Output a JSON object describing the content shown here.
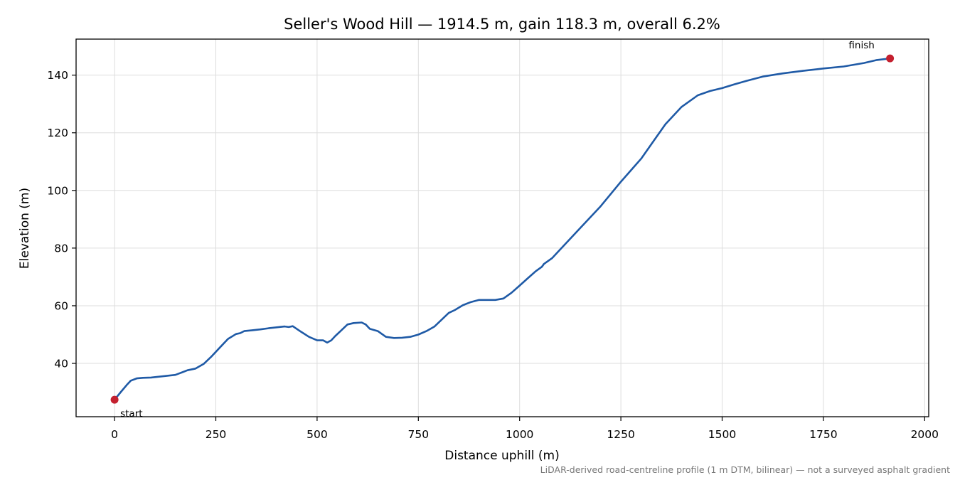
{
  "chart_data": {
    "type": "line",
    "title": "Seller's Wood Hill — 1914.5 m, gain 118.3 m, overall 6.2%",
    "xlabel": "Distance uphill (m)",
    "ylabel": "Elevation (m)",
    "xlim": [
      -95,
      2010
    ],
    "ylim": [
      21.5,
      152.5
    ],
    "xticks": [
      0,
      250,
      500,
      750,
      1000,
      1250,
      1500,
      1750,
      2000
    ],
    "yticks": [
      40,
      60,
      80,
      100,
      120,
      140
    ],
    "grid": true,
    "line_color": "#1f5aa6",
    "marker_color": "#c4202f",
    "series": [
      {
        "x": [
          0,
          15,
          30,
          40,
          55,
          70,
          90,
          110,
          130,
          150,
          165,
          180,
          200,
          220,
          240,
          260,
          280,
          300,
          310,
          320,
          340,
          360,
          380,
          400,
          420,
          430,
          440,
          460,
          480,
          500,
          515,
          525,
          535,
          545,
          560,
          575,
          590,
          610,
          620,
          630,
          650,
          670,
          690,
          710,
          730,
          750,
          770,
          790,
          810,
          825,
          840,
          860,
          880,
          900,
          920,
          940,
          960,
          980,
          1000,
          1020,
          1040,
          1055,
          1060,
          1080,
          1100,
          1150,
          1200,
          1250,
          1300,
          1330,
          1360,
          1400,
          1440,
          1470,
          1500,
          1530,
          1560,
          1600,
          1650,
          1700,
          1750,
          1800,
          1850,
          1880,
          1914.5
        ],
        "y": [
          27.4,
          30.0,
          32.5,
          34.0,
          34.8,
          35.0,
          35.1,
          35.4,
          35.7,
          36.0,
          36.8,
          37.6,
          38.2,
          39.8,
          42.5,
          45.5,
          48.5,
          50.2,
          50.5,
          51.2,
          51.5,
          51.8,
          52.2,
          52.5,
          52.8,
          52.6,
          52.9,
          51.0,
          49.2,
          48.0,
          48.0,
          47.2,
          48.0,
          49.5,
          51.5,
          53.5,
          54.0,
          54.2,
          53.5,
          52.0,
          51.2,
          49.2,
          48.8,
          48.9,
          49.2,
          50.0,
          51.2,
          52.8,
          55.5,
          57.5,
          58.5,
          60.2,
          61.3,
          62.0,
          62.0,
          62.0,
          62.5,
          64.5,
          67.0,
          69.5,
          72.0,
          73.5,
          74.5,
          76.5,
          79.5,
          87.0,
          94.5,
          103.0,
          111.0,
          117.0,
          123.0,
          129.0,
          133.0,
          134.5,
          135.5,
          136.8,
          138.0,
          139.5,
          140.6,
          141.5,
          142.3,
          143.0,
          144.2,
          145.2,
          145.8
        ]
      }
    ],
    "annotations": [
      {
        "label": "start",
        "x": 0,
        "y": 27.4
      },
      {
        "label": "finish",
        "x": 1914.5,
        "y": 145.8
      }
    ],
    "footnote": "LiDAR-derived road-centreline profile (1 m DTM, bilinear) — not a surveyed asphalt gradient"
  }
}
